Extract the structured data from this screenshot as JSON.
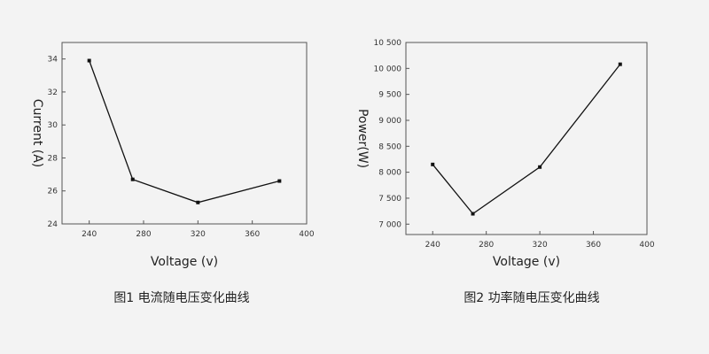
{
  "chart_data": [
    {
      "type": "line",
      "title": "",
      "xlabel": "Voltage (v)",
      "ylabel": "Current (A)",
      "xlim": [
        220,
        400
      ],
      "ylim": [
        24,
        35
      ],
      "xticks": [
        240,
        280,
        320,
        360,
        400
      ],
      "yticks": [
        24,
        26,
        28,
        30,
        32,
        34
      ],
      "x": [
        240,
        272,
        320,
        380
      ],
      "y": [
        33.9,
        26.7,
        25.3,
        26.6
      ],
      "caption": "图1  电流随电压变化曲线",
      "grid": false,
      "color": "#111111"
    },
    {
      "type": "line",
      "title": "",
      "xlabel": "Voltage (v)",
      "ylabel": "Power(W)",
      "xlim": [
        220,
        400
      ],
      "ylim": [
        6800,
        10500
      ],
      "xticks": [
        240,
        280,
        320,
        360,
        400
      ],
      "yticks": [
        7000,
        7500,
        8000,
        8500,
        9000,
        9500,
        10000,
        10500
      ],
      "ytick_labels": [
        "7 000",
        "7 500",
        "8 000",
        "8 500",
        "9 000",
        "9 500",
        "10 000",
        "10 500"
      ],
      "x": [
        240,
        270,
        320,
        380
      ],
      "y": [
        8150,
        7200,
        8100,
        10080
      ],
      "caption": "图2  功率随电压变化曲线",
      "grid": false,
      "color": "#111111"
    }
  ]
}
